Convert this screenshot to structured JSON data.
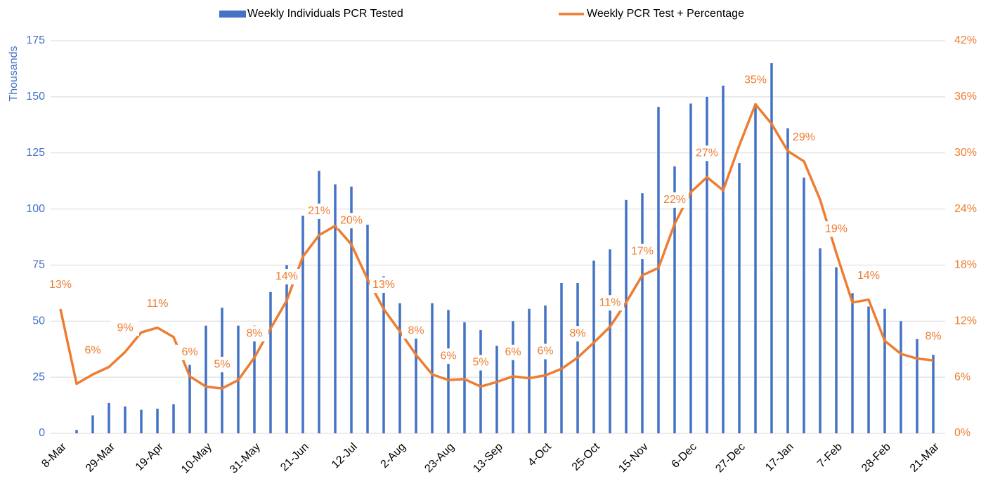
{
  "chart_data": {
    "type": "bar",
    "y_label": "Thousands",
    "categories": [
      "8-Mar",
      null,
      null,
      "29-Mar",
      null,
      null,
      "19-Apr",
      null,
      null,
      "10-May",
      null,
      null,
      "31-May",
      null,
      null,
      "21-Jun",
      null,
      null,
      "12-Jul",
      null,
      null,
      "2-Aug",
      null,
      null,
      "23-Aug",
      null,
      null,
      "13-Sep",
      null,
      null,
      "4-Oct",
      null,
      null,
      "25-Oct",
      null,
      null,
      "15-Nov",
      null,
      null,
      "6-Dec",
      null,
      null,
      "27-Dec",
      null,
      null,
      "17-Jan",
      null,
      null,
      "7-Feb",
      null,
      null,
      "28-Feb",
      null,
      null,
      "21-Mar"
    ],
    "series": [
      {
        "name": "Weekly Individuals PCR Tested",
        "type": "bar",
        "color": "#4472c4",
        "values": [
          0,
          1.5,
          8,
          13.5,
          12,
          10.5,
          11,
          13,
          30.5,
          48,
          56,
          48,
          48,
          63,
          75,
          97,
          117,
          111,
          110,
          93,
          70,
          58,
          46,
          58,
          55,
          49.5,
          46,
          39,
          50,
          55.5,
          57,
          67,
          67,
          77,
          82,
          104,
          107,
          145.5,
          119,
          147,
          150,
          155,
          120.5,
          147,
          165,
          136,
          114,
          82.5,
          74,
          62.5,
          56.5,
          55.5,
          50,
          42,
          35
        ]
      },
      {
        "name": "Weekly PCR Test + Percentage",
        "type": "line",
        "axis": "y2",
        "color": "#ed7d31",
        "values": [
          13.3,
          5.3,
          6.3,
          7.1,
          8.7,
          10.8,
          11.3,
          10.3,
          6.1,
          5.0,
          4.8,
          5.7,
          8.1,
          11.2,
          14.2,
          18.9,
          21.2,
          22.2,
          20.2,
          16.5,
          13.3,
          10.9,
          8.4,
          6.3,
          5.7,
          5.8,
          5.0,
          5.5,
          6.1,
          5.9,
          6.2,
          6.9,
          8.1,
          9.7,
          11.4,
          14.0,
          16.9,
          17.7,
          22.4,
          25.8,
          27.4,
          26.0,
          30.8,
          35.2,
          33.1,
          30.2,
          29.1,
          25.0,
          19.3,
          14.0,
          14.3,
          9.9,
          8.5,
          8.0,
          7.8
        ],
        "value_labels": [
          "13%",
          null,
          "6%",
          null,
          "9%",
          null,
          "11%",
          null,
          "6%",
          null,
          "5%",
          null,
          "8%",
          null,
          "14%",
          null,
          "21%",
          null,
          "20%",
          null,
          "13%",
          null,
          "8%",
          null,
          "6%",
          null,
          "5%",
          null,
          "6%",
          null,
          "6%",
          null,
          "8%",
          null,
          "11%",
          null,
          "17%",
          null,
          "22%",
          null,
          "27%",
          null,
          null,
          "35%",
          null,
          null,
          "29%",
          null,
          "19%",
          null,
          "14%",
          null,
          null,
          null,
          "8%"
        ]
      }
    ],
    "ylim": [
      0,
      175
    ],
    "yticks": [
      0,
      25,
      50,
      75,
      100,
      125,
      150,
      175
    ],
    "y2lim": [
      0,
      42
    ],
    "y2ticks": [
      {
        "value": 0,
        "label": "0%"
      },
      {
        "value": 6,
        "label": "6%"
      },
      {
        "value": 12,
        "label": "12%"
      },
      {
        "value": 18,
        "label": "18%"
      },
      {
        "value": 24,
        "label": "24%"
      },
      {
        "value": 30,
        "label": "30%"
      },
      {
        "value": 36,
        "label": "36%"
      },
      {
        "value": 42,
        "label": "42%"
      }
    ],
    "grid": true,
    "legend": "top"
  }
}
